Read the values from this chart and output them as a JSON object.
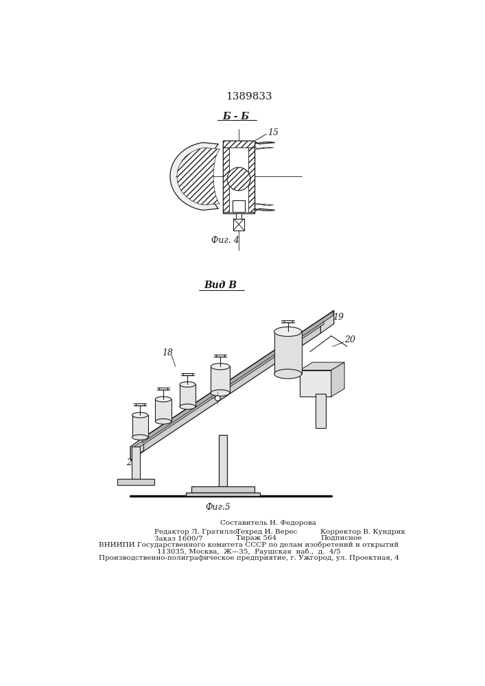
{
  "patent_number": "1389833",
  "fig4_label": "Фиг. 4",
  "fig5_label": "Фиг.5",
  "section_label": "Б - Б",
  "view_label": "Вид В",
  "footer_lines": [
    "Составитель Н. Федорова",
    "Редактор Л. Гратилло        Техред И. Верес         Корректор В. Кундрик",
    "Заказ 1600/7                  Тираж 564                    Подписное",
    "ВНИИПИ Государственного комитета СССР по делам изобретений и открытий",
    "113035, Москва,  Ж—35,  Раушская  наб.,  д.  4/5",
    "Производственно-полиграфическое предприятие, г. Ужгород, ул. Проектная, 4"
  ],
  "bg_color": "#ffffff",
  "line_color": "#1a1a1a"
}
